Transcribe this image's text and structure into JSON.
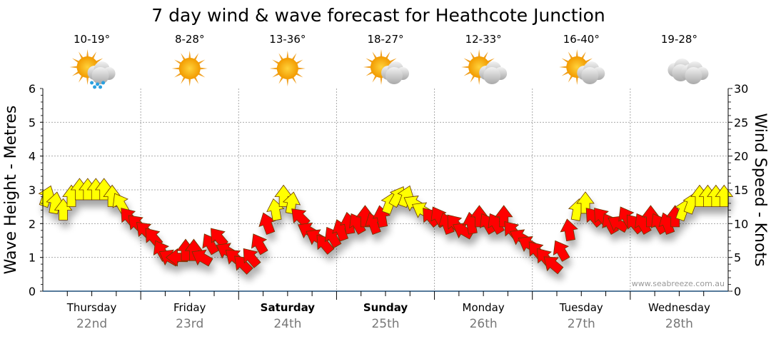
{
  "chart_data": {
    "type": "scatter",
    "title": "7 day wind & wave forecast for Heathcote Junction",
    "ylabel": "Wave Height - Metres",
    "y2label": "Wind Speed - Knots",
    "ylim": [
      0,
      6
    ],
    "y2lim": [
      0,
      30
    ],
    "yticks": [
      "0",
      "1",
      "2",
      "3",
      "4",
      "5",
      "6"
    ],
    "y2ticks": [
      "0",
      "5",
      "10",
      "15",
      "20",
      "25",
      "30"
    ],
    "days": [
      {
        "name": "Thursday",
        "date": "22nd",
        "bold": false,
        "temp": "10-19°",
        "icon": "sun-cloud-rain"
      },
      {
        "name": "Friday",
        "date": "23rd",
        "bold": false,
        "temp": "8-28°",
        "icon": "sun"
      },
      {
        "name": "Saturday",
        "date": "24th",
        "bold": true,
        "temp": "13-36°",
        "icon": "sun"
      },
      {
        "name": "Sunday",
        "date": "25th",
        "bold": true,
        "temp": "18-27°",
        "icon": "sun-cloud"
      },
      {
        "name": "Monday",
        "date": "26th",
        "bold": false,
        "temp": "12-33°",
        "icon": "sun-cloud"
      },
      {
        "name": "Tuesday",
        "date": "27th",
        "bold": false,
        "temp": "16-40°",
        "icon": "sun-cloud"
      },
      {
        "name": "Wednesday",
        "date": "28th",
        "bold": false,
        "temp": "19-28°",
        "icon": "cloud"
      }
    ],
    "wind_knots": [
      14,
      13,
      12,
      14,
      15,
      15,
      15,
      15,
      14,
      13,
      11,
      10,
      9,
      8,
      6,
      5,
      5,
      6,
      6,
      5,
      7,
      8,
      6,
      5,
      4,
      5,
      7,
      10,
      12,
      14,
      13,
      11,
      9,
      8,
      7,
      8,
      9,
      10,
      10,
      11,
      10,
      11,
      13,
      14,
      14,
      13,
      12,
      11,
      11,
      10,
      10,
      9,
      10,
      11,
      10,
      10,
      11,
      9,
      8,
      7,
      6,
      5,
      4,
      6,
      9,
      12,
      13,
      11,
      11,
      10,
      10,
      11,
      10,
      10,
      11,
      10,
      10,
      11,
      12,
      13,
      14,
      14,
      14,
      14
    ],
    "wind_direction_deg": [
      20,
      10,
      0,
      0,
      0,
      0,
      0,
      0,
      0,
      330,
      320,
      315,
      315,
      320,
      330,
      300,
      270,
      0,
      0,
      300,
      330,
      320,
      300,
      310,
      315,
      320,
      330,
      340,
      350,
      0,
      10,
      315,
      300,
      300,
      320,
      330,
      340,
      350,
      330,
      0,
      340,
      350,
      20,
      30,
      20,
      300,
      300,
      320,
      330,
      340,
      320,
      300,
      350,
      0,
      330,
      330,
      0,
      320,
      300,
      300,
      320,
      320,
      310,
      330,
      350,
      10,
      0,
      320,
      320,
      330,
      300,
      330,
      320,
      330,
      0,
      330,
      340,
      0,
      20,
      20,
      0,
      0,
      0,
      0
    ],
    "yellow_threshold_knots": 12,
    "colors": {
      "strong": "#ffff00",
      "moderate": "#ff0000",
      "axis": "#1f4e79"
    }
  },
  "watermark": "www.seabreeze.com.au"
}
